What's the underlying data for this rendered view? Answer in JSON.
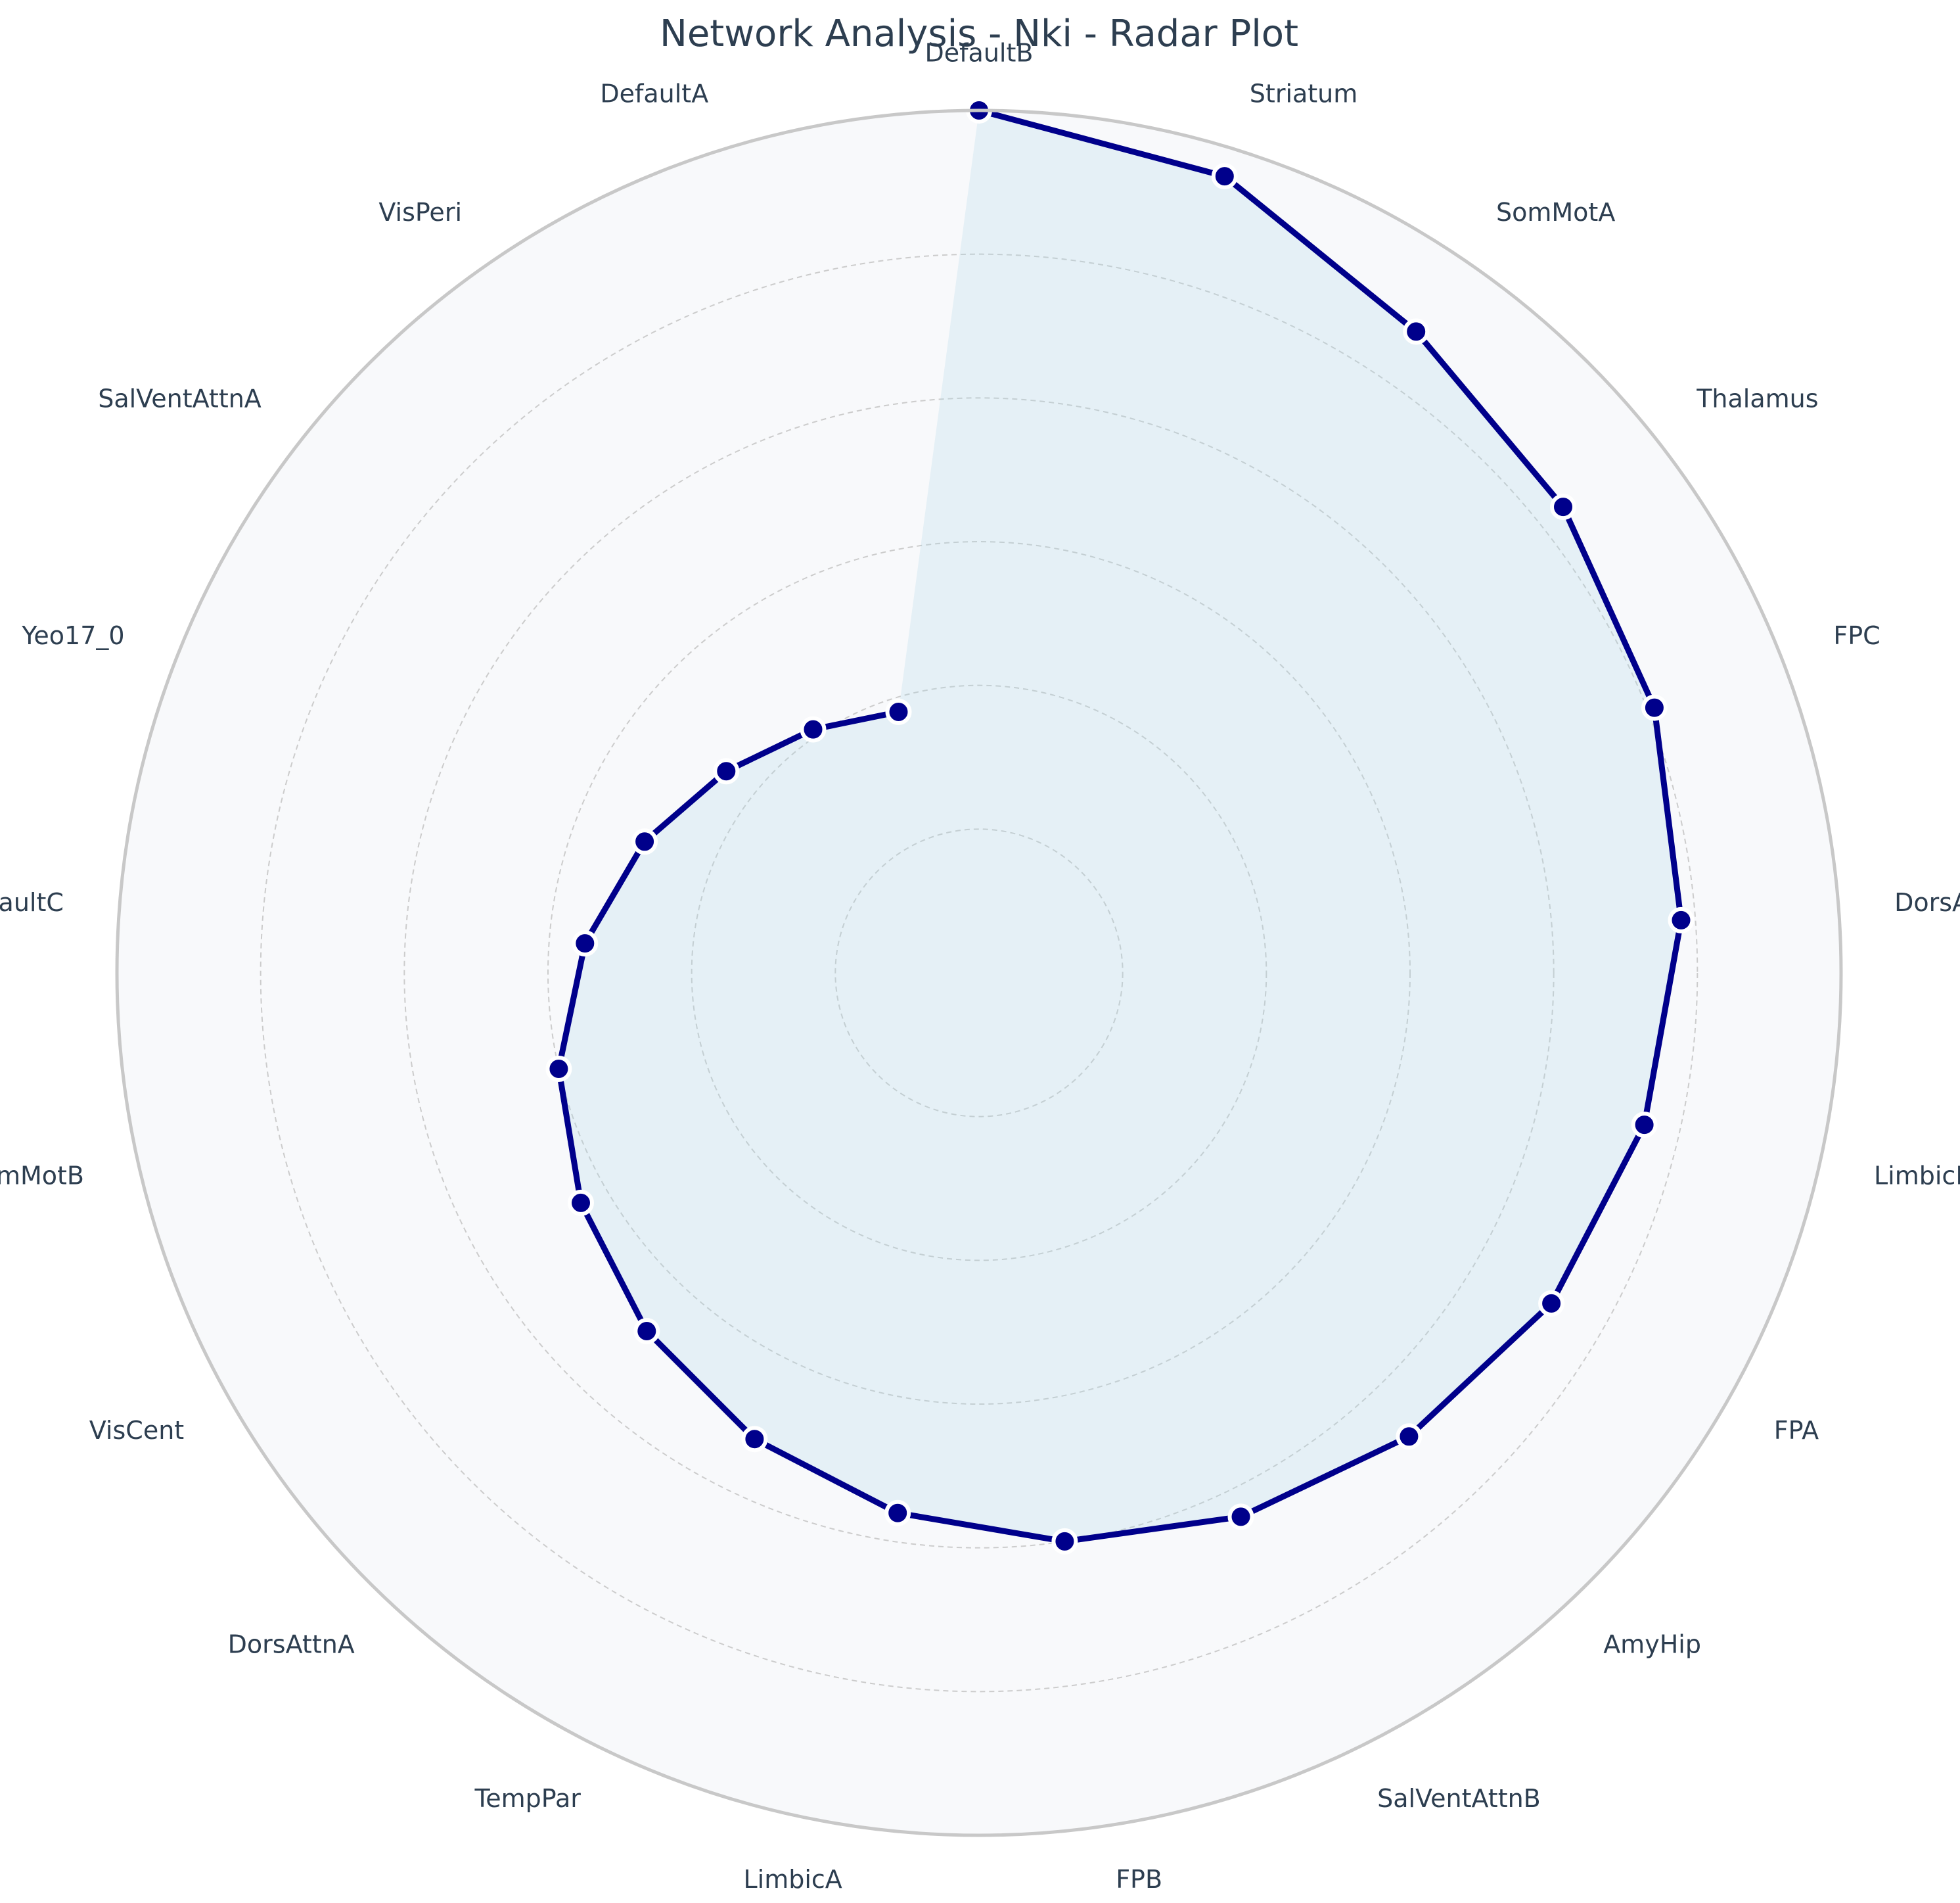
{
  "chart_data": {
    "type": "radar",
    "title": "Network Analysis - Nki - Radar Plot",
    "categories": [
      "DefaultB",
      "Striatum",
      "SomMotA",
      "Thalamus",
      "FPC",
      "DorsAttnB",
      "LimbicB",
      "FPA",
      "AmyHip",
      "SalVentAttnB",
      "FPB",
      "LimbicA",
      "TempPar",
      "DorsAttnA",
      "VisCent",
      "SomMotB",
      "DefaultC",
      "Yeo17_0",
      "SalVentAttnA",
      "VisPeri",
      "DefaultA"
    ],
    "series": [
      {
        "values": [
          1.0,
          0.96,
          0.88,
          0.84,
          0.81,
          0.78,
          0.75,
          0.72,
          0.68,
          0.64,
          0.6,
          0.56,
          0.52,
          0.48,
          0.44,
          0.4,
          0.35,
          0.3,
          0.25,
          0.21,
          0.18
        ]
      }
    ],
    "rlim": [
      -0.2,
      1.0
    ],
    "grid": true,
    "colors": {
      "line": "#00008b",
      "fill": "#add8e6",
      "background": "#f8f9fb",
      "grid": "#cccccc",
      "outline": "#c8c8c8",
      "marker_edge": "#ffffff"
    }
  }
}
